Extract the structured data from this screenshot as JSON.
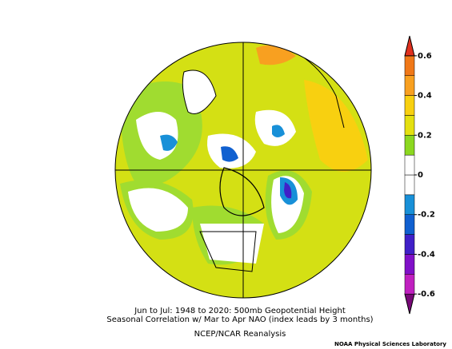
{
  "title_lines": [
    "Jun to Jul: 1948 to 2020: 500mb Geopotential Height",
    "Seasonal Correlation w/ Mar to Apr NAO (index leads by 3 months)"
  ],
  "source": "NCEP/NCAR Reanalysis",
  "credit": "NOAA Physical Sciences Laboratory",
  "colorbar": {
    "lim": [
      -0.7,
      0.7
    ],
    "ticks": [
      -0.6,
      -0.4,
      -0.2,
      0,
      0.2,
      0.4,
      0.6
    ],
    "bounds": [
      -0.7,
      -0.6,
      -0.5,
      -0.4,
      -0.3,
      -0.2,
      -0.1,
      0,
      0.1,
      0.2,
      0.3,
      0.4,
      0.5,
      0.6,
      0.7
    ],
    "colors": [
      "#780878",
      "#c020c0",
      "#8010c8",
      "#4020c8",
      "#1060d0",
      "#1890d8",
      "#ffffff",
      "#ffffff",
      "#8cd820",
      "#e4e010",
      "#f8d010",
      "#f8a020",
      "#f07818",
      "#e0301e"
    ]
  }
}
